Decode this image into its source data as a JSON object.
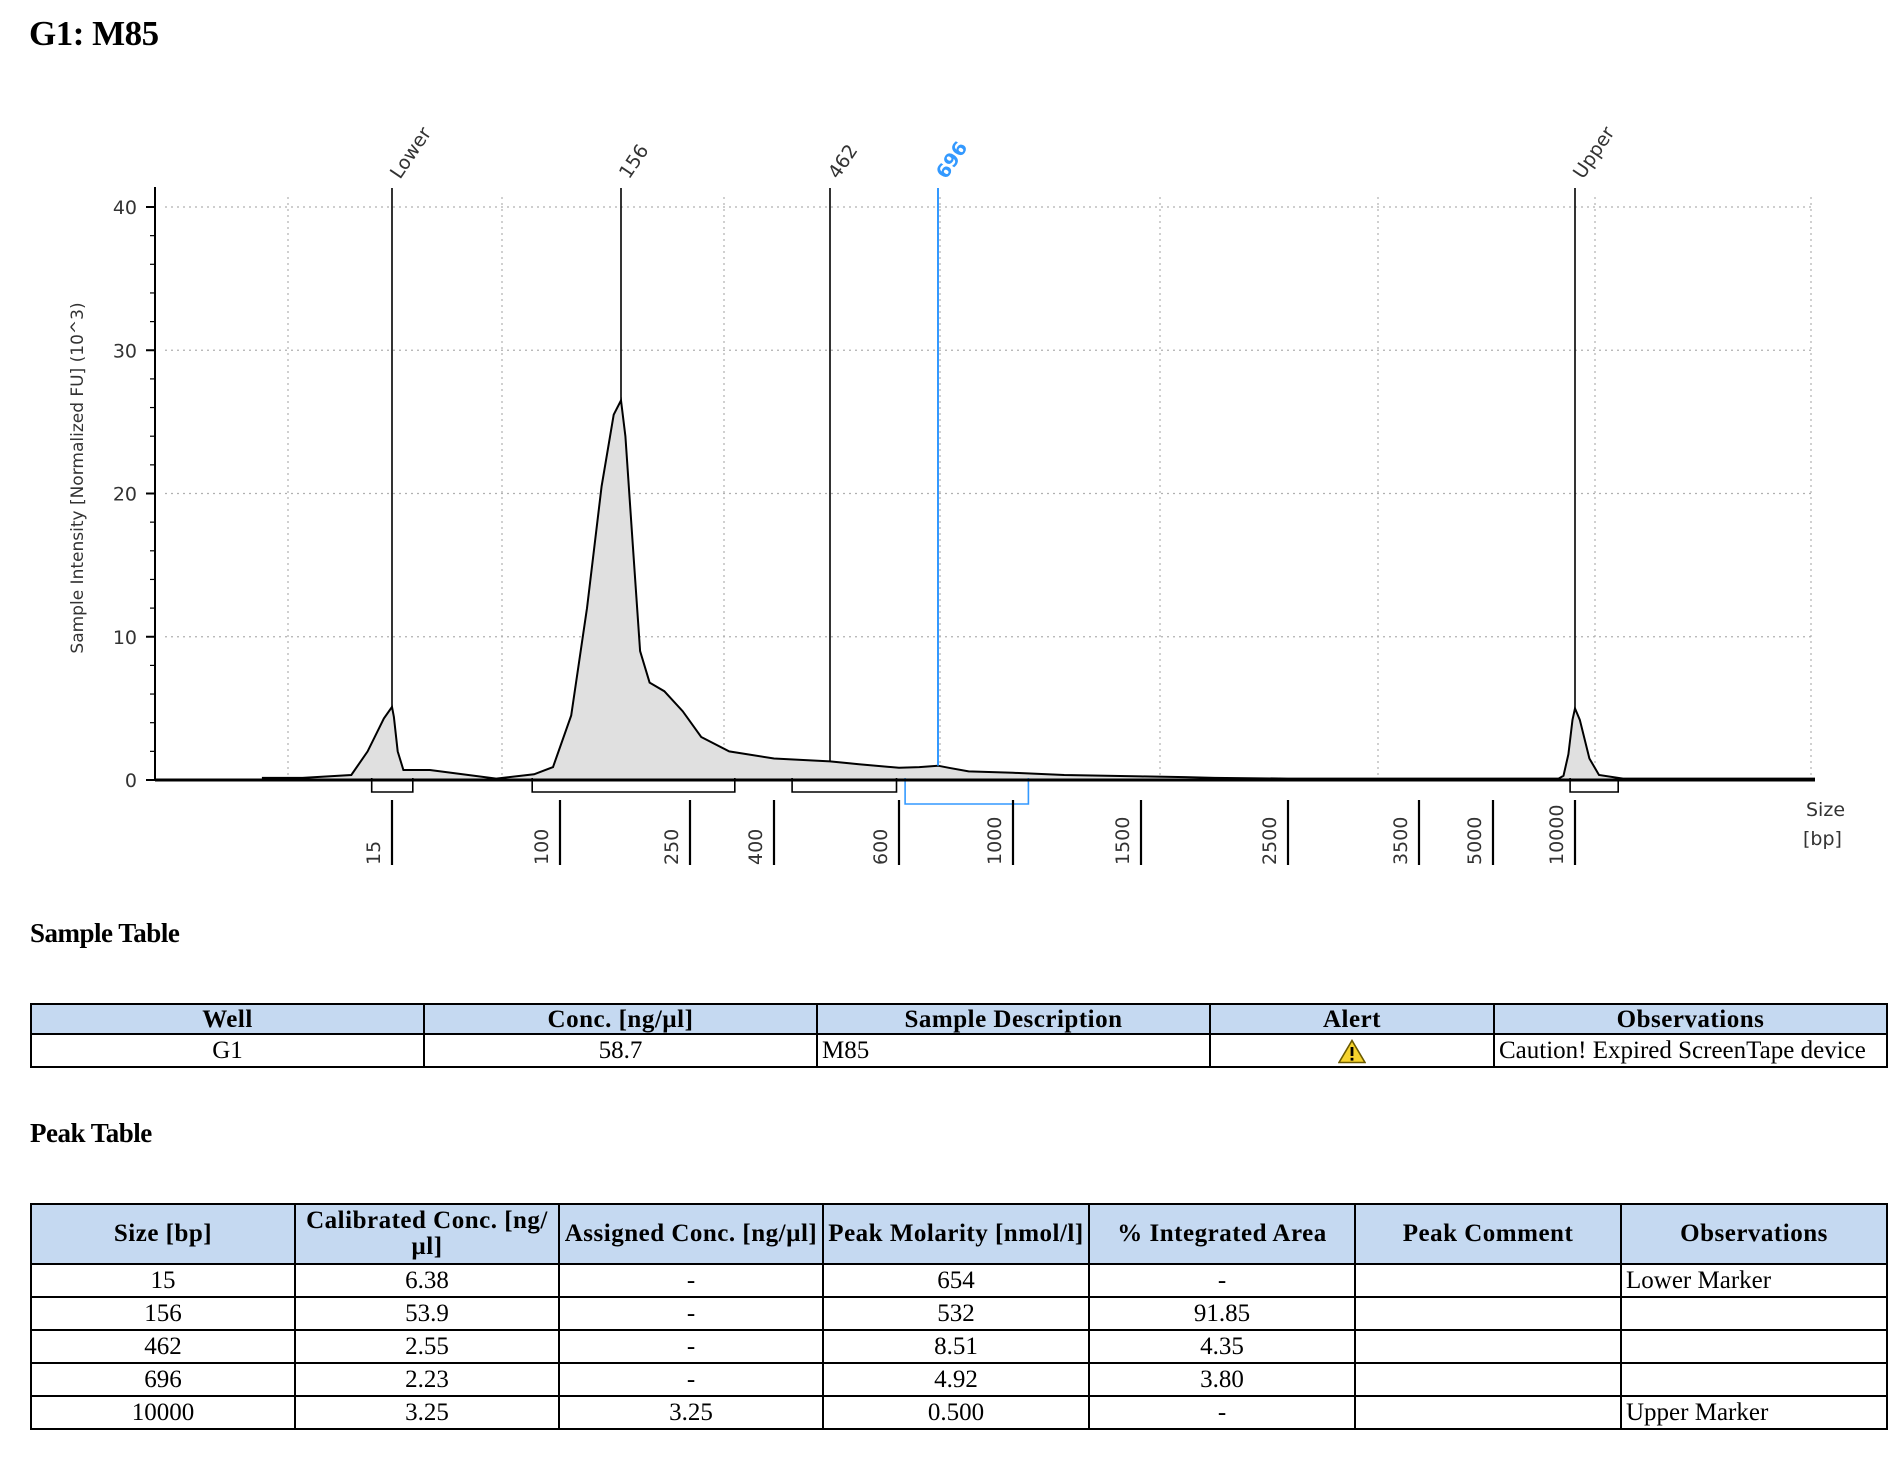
{
  "page_title": "G1: M85",
  "chart_data": {
    "type": "line",
    "ylabel": "Sample Intensity [Normalized FU] (10^3)",
    "xlabel": "Size\n[bp]",
    "ylim": [
      0,
      40
    ],
    "y_ticks": [
      0,
      10,
      20,
      30,
      40
    ],
    "x_ticks": [
      "15",
      "100",
      "250",
      "400",
      "600",
      "1000",
      "1500",
      "2500",
      "3500",
      "5000",
      "10000"
    ],
    "grid": "dotted",
    "peaks": [
      {
        "label": "Lower",
        "size": 15,
        "height": 5.1
      },
      {
        "label": "156",
        "size": 156,
        "height": 26.5
      },
      {
        "label": "462",
        "size": 462,
        "height": 1.3
      },
      {
        "label": "696",
        "size": 696,
        "height": 1.0,
        "selected": true
      },
      {
        "label": "Upper",
        "size": 10000,
        "height": 5.0
      }
    ],
    "colors": {
      "trace": "#000000",
      "fill": "#e0e0e0",
      "selected": "#3399ff",
      "grid": "#b0b0b0"
    }
  },
  "sample_table": {
    "title": "Sample Table",
    "headers": [
      "Well",
      "Conc. [ng/µl]",
      "Sample Description",
      "Alert",
      "Observations"
    ],
    "rows": [
      {
        "well": "G1",
        "conc": "58.7",
        "description": "M85",
        "alert_icon": "warning-icon",
        "observations": "Caution! Expired ScreenTape device"
      }
    ]
  },
  "peak_table": {
    "title": "Peak Table",
    "headers": [
      "Size [bp]",
      "Calibrated Conc. [ng/µl]",
      "Assigned Conc. [ng/µl]",
      "Peak Molarity [nmol/l]",
      "% Integrated Area",
      "Peak Comment",
      "Observations"
    ],
    "rows": [
      [
        "15",
        "6.38",
        "-",
        "654",
        "-",
        "",
        "Lower Marker"
      ],
      [
        "156",
        "53.9",
        "-",
        "532",
        "91.85",
        "",
        ""
      ],
      [
        "462",
        "2.55",
        "-",
        "8.51",
        "4.35",
        "",
        ""
      ],
      [
        "696",
        "2.23",
        "-",
        "4.92",
        "3.80",
        "",
        ""
      ],
      [
        "10000",
        "3.25",
        "3.25",
        "0.500",
        "-",
        "",
        "Upper Marker"
      ]
    ]
  }
}
